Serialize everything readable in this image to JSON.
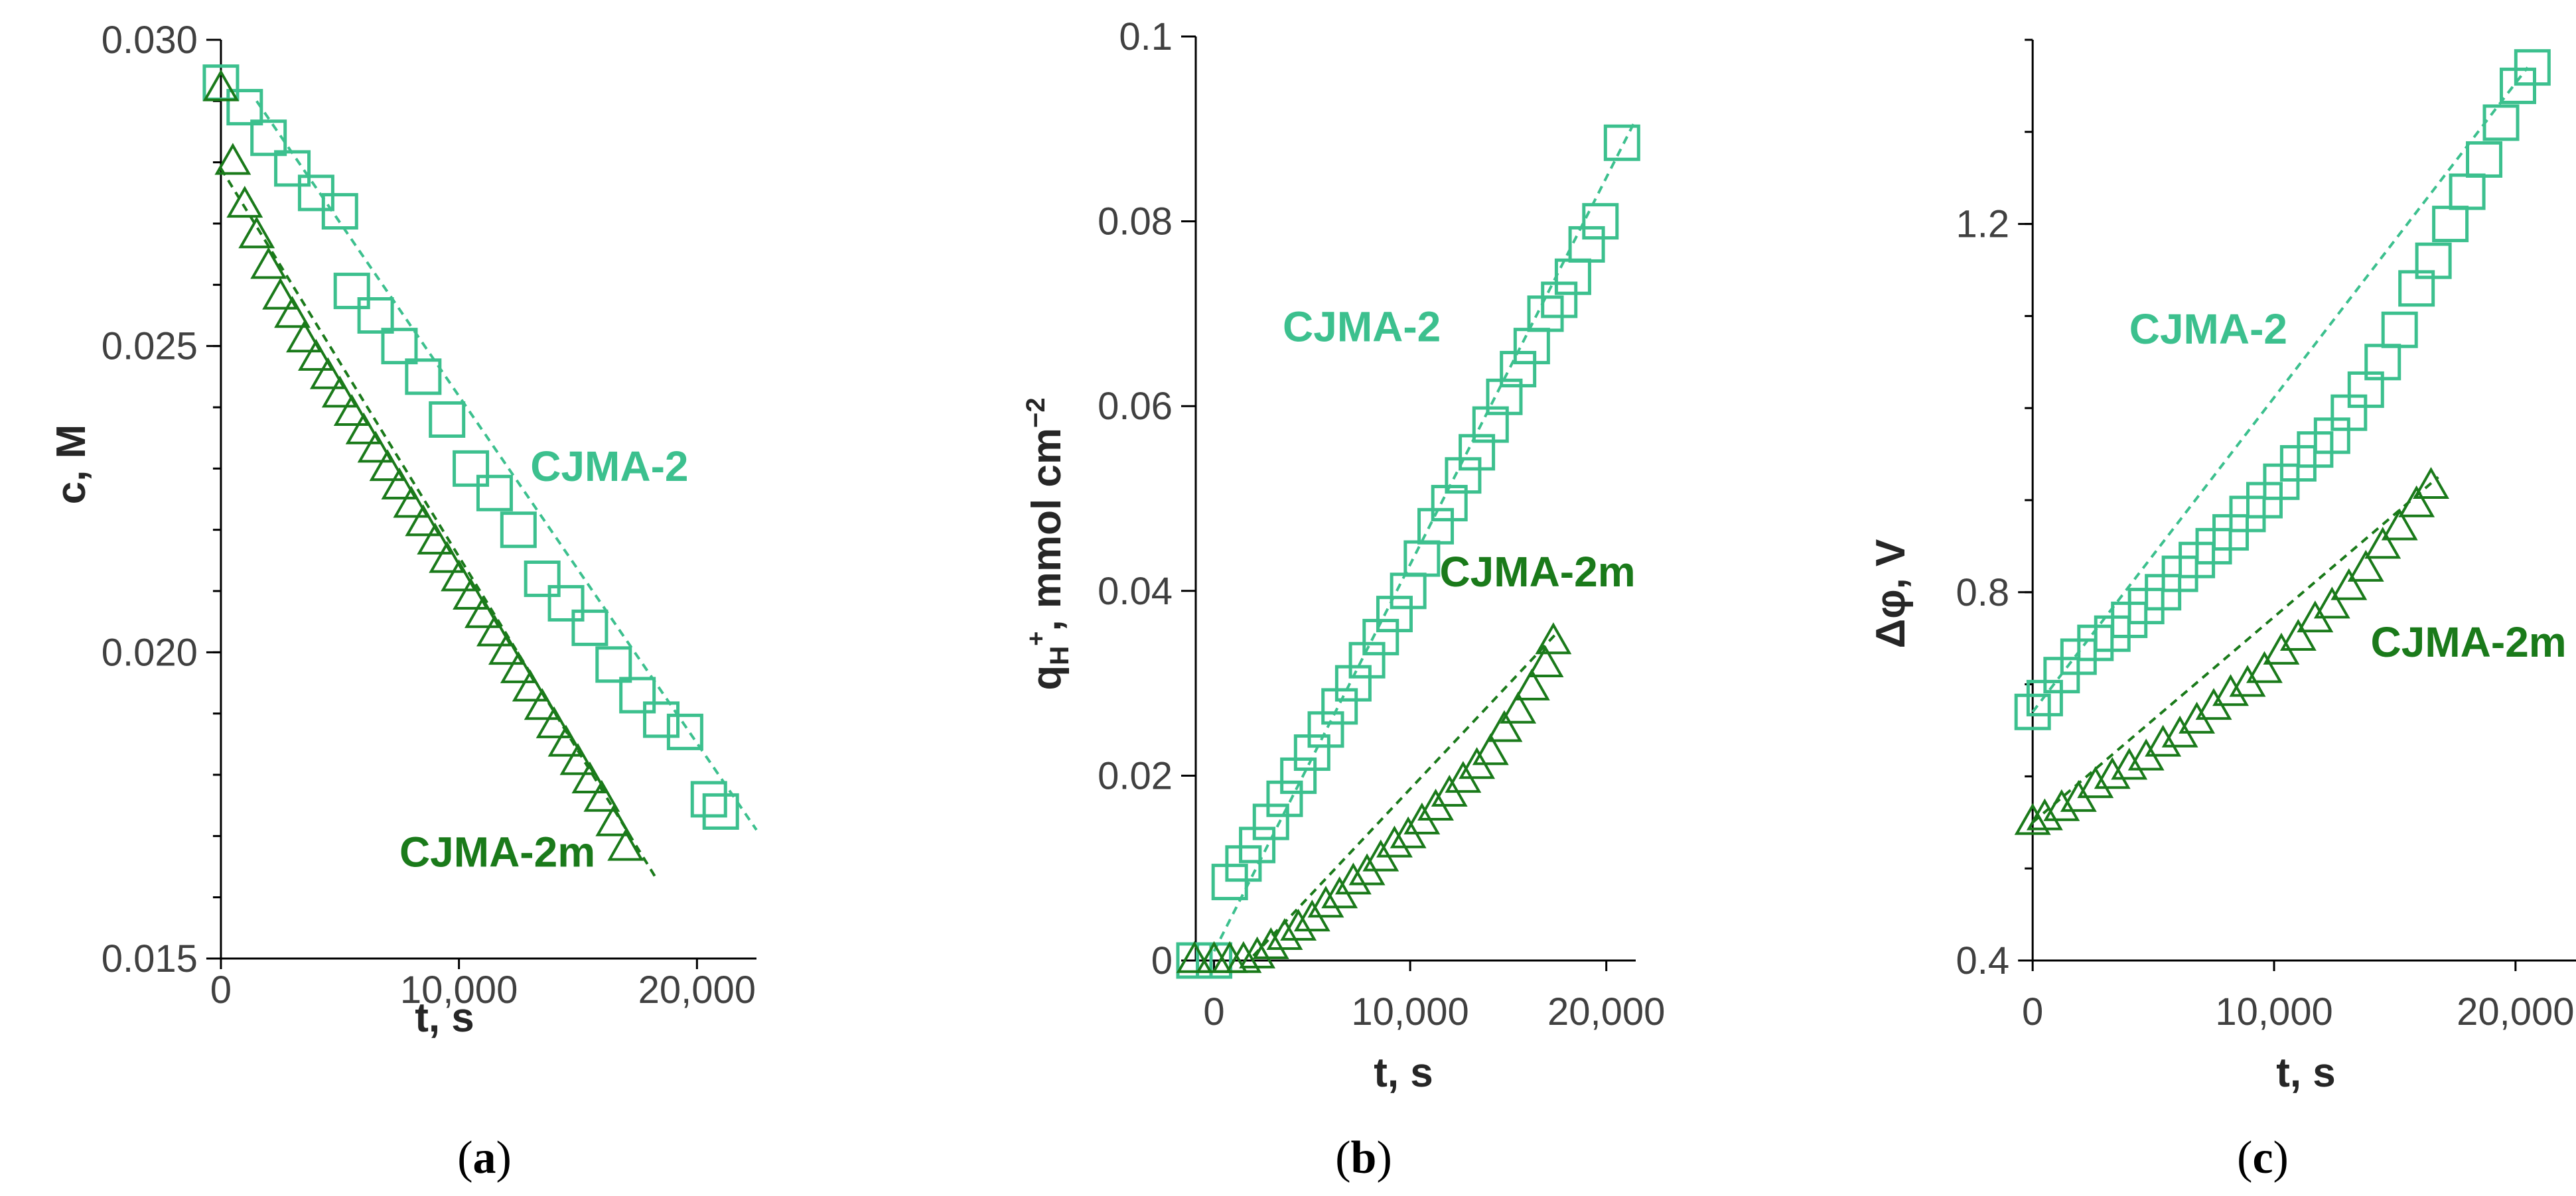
{
  "colors": {
    "cjma2": "#3cc08e",
    "cjma2m": "#1a7a1a",
    "axis": "#000000"
  },
  "chart_data": [
    {
      "type": "scatter",
      "panel": "a",
      "xlabel": "t, s",
      "ylabel": "c, M",
      "xlim": [
        -500,
        22500
      ],
      "ylim": [
        0.015,
        0.03
      ],
      "x_ticks": [
        0,
        10000,
        20000
      ],
      "x_tick_labels": [
        "0",
        "10,000",
        "20,000"
      ],
      "y_ticks": [
        0.015,
        0.02,
        0.025,
        0.03
      ],
      "y_tick_labels": [
        "0.015",
        "0.020",
        "0.025",
        "0.030"
      ],
      "y_minor_step": 0.001,
      "series": [
        {
          "name": "CJMA-2",
          "marker": "square",
          "x": [
            0,
            1000,
            2000,
            3000,
            4000,
            5000,
            5500,
            6500,
            7500,
            8500,
            9500,
            10500,
            11500,
            12500,
            13500,
            14500,
            15500,
            16500,
            17500,
            18500,
            19500,
            20500,
            21000
          ],
          "y": [
            0.0293,
            0.0289,
            0.0284,
            0.0279,
            0.0275,
            0.0272,
            0.0259,
            0.0255,
            0.025,
            0.0245,
            0.0238,
            0.023,
            0.0226,
            0.022,
            0.0212,
            0.0208,
            0.0204,
            0.0198,
            0.0193,
            0.0189,
            0.0187,
            0.0176,
            0.0174
          ],
          "fit": {
            "x": [
              1500,
              22500
            ],
            "y": [
              0.029,
              0.0171
            ]
          }
        },
        {
          "name": "CJMA-2m",
          "marker": "triangle",
          "x": [
            0,
            500,
            1000,
            1500,
            2000,
            2500,
            3000,
            3500,
            4000,
            4500,
            5000,
            5500,
            6000,
            6500,
            7000,
            7500,
            8000,
            8500,
            9000,
            9500,
            10000,
            10500,
            11000,
            11500,
            12000,
            12500,
            13000,
            13500,
            14000,
            14500,
            15000,
            15500,
            16000,
            16500,
            17000
          ],
          "y": [
            0.0292,
            0.028,
            0.0273,
            0.0268,
            0.0263,
            0.0258,
            0.0255,
            0.0251,
            0.0248,
            0.0245,
            0.0242,
            0.0239,
            0.0236,
            0.0233,
            0.023,
            0.0227,
            0.0224,
            0.0221,
            0.0218,
            0.0215,
            0.0212,
            0.0209,
            0.0206,
            0.0203,
            0.02,
            0.0197,
            0.0194,
            0.0191,
            0.0188,
            0.0185,
            0.0182,
            0.0179,
            0.0176,
            0.0172,
            0.0168
          ],
          "fit": {
            "x": [
              0,
              18300
            ],
            "y": [
              0.0279,
              0.0163
            ]
          }
        }
      ],
      "annotations": [
        {
          "text": "CJMA-2",
          "series": "CJMA-2",
          "x": 13000,
          "y": 0.0228
        },
        {
          "text": "CJMA-2m",
          "series": "CJMA-2m",
          "x": 7500,
          "y": 0.0165
        }
      ],
      "caption": {
        "open": "(",
        "letter": "a",
        "close": ")"
      }
    },
    {
      "type": "scatter",
      "panel": "b",
      "xlabel": "t, s",
      "ylabel": {
        "main": "q",
        "sub": "H",
        "sup": "+",
        "rest": ", mmol cm",
        "exp": "−2"
      },
      "xlim": [
        -1000,
        21500
      ],
      "ylim": [
        0,
        0.1
      ],
      "x_ticks": [
        0,
        10000,
        20000
      ],
      "x_tick_labels": [
        "0",
        "10,000",
        "20,000"
      ],
      "y_ticks": [
        0,
        0.02,
        0.04,
        0.06,
        0.08,
        0.1
      ],
      "y_tick_labels": [
        "0",
        "0.02",
        "0.04",
        "0.06",
        "0.08",
        "0.1"
      ],
      "series": [
        {
          "name": "CJMA-2",
          "marker": "square",
          "x": [
            -1000,
            0,
            800,
            1500,
            2200,
            2900,
            3600,
            4300,
            5000,
            5700,
            6400,
            7100,
            7800,
            8500,
            9200,
            9900,
            10600,
            11300,
            12000,
            12700,
            13400,
            14100,
            14800,
            15500,
            16200,
            16900,
            17600,
            18300,
            19000,
            19700,
            20800
          ],
          "y": [
            0,
            0,
            0.0085,
            0.0105,
            0.0125,
            0.015,
            0.0175,
            0.02,
            0.0225,
            0.025,
            0.0275,
            0.03,
            0.0325,
            0.035,
            0.0375,
            0.04,
            0.0435,
            0.047,
            0.0495,
            0.0525,
            0.055,
            0.058,
            0.061,
            0.064,
            0.0665,
            0.07,
            0.0715,
            0.074,
            0.0775,
            0.08,
            0.0885
          ],
          "fit": {
            "x": [
              0,
              21500
            ],
            "y": [
              0.001,
              0.091
            ]
          }
        },
        {
          "name": "CJMA-2m",
          "marker": "triangle",
          "x": [
            -1000,
            0,
            800,
            1500,
            2200,
            2900,
            3600,
            4300,
            5000,
            5700,
            6400,
            7100,
            7800,
            8500,
            9200,
            9900,
            10600,
            11300,
            12000,
            12700,
            13400,
            14100,
            14800,
            15500,
            16200,
            16900,
            17300
          ],
          "y": [
            0,
            0,
            0,
            0,
            0.0005,
            0.0015,
            0.0025,
            0.0035,
            0.0045,
            0.006,
            0.007,
            0.0085,
            0.0095,
            0.011,
            0.0125,
            0.0135,
            0.015,
            0.0165,
            0.018,
            0.0195,
            0.021,
            0.0225,
            0.025,
            0.027,
            0.0295,
            0.032,
            0.0345
          ],
          "fit": {
            "x": [
              2000,
              17500
            ],
            "y": [
              0.0005,
              0.0355
            ]
          }
        }
      ],
      "annotations": [
        {
          "text": "CJMA-2",
          "series": "CJMA-2",
          "x": 3500,
          "y": 0.067
        },
        {
          "text": "CJMA-2m",
          "series": "CJMA-2m",
          "x": 11500,
          "y": 0.0405
        }
      ],
      "caption": {
        "open": "(",
        "letter": "b",
        "close": ")"
      }
    },
    {
      "type": "scatter",
      "panel": "c",
      "xlabel": "t, s",
      "ylabel": "Δφ, V",
      "xlim": [
        -500,
        23000
      ],
      "ylim": [
        0.4,
        1.4
      ],
      "x_ticks": [
        0,
        10000,
        20000
      ],
      "x_tick_labels": [
        "0",
        "10,000",
        "20,000"
      ],
      "y_ticks": [
        0.4,
        0.8,
        1.2
      ],
      "y_tick_labels": [
        "0.4",
        "0.8",
        "1.2"
      ],
      "y_minor_step": 0.1,
      "series": [
        {
          "name": "CJMA-2",
          "marker": "square",
          "x": [
            0,
            500,
            1200,
            1900,
            2600,
            3300,
            4000,
            4700,
            5400,
            6100,
            6800,
            7500,
            8200,
            8900,
            9600,
            10300,
            11000,
            11700,
            12400,
            13100,
            13800,
            14500,
            15200,
            15900,
            16600,
            17300,
            18000,
            18700,
            19400,
            20100,
            20700
          ],
          "y": [
            0.67,
            0.685,
            0.71,
            0.73,
            0.745,
            0.755,
            0.77,
            0.785,
            0.8,
            0.82,
            0.835,
            0.85,
            0.865,
            0.885,
            0.9,
            0.92,
            0.94,
            0.955,
            0.97,
            0.995,
            1.02,
            1.05,
            1.085,
            1.13,
            1.16,
            1.2,
            1.235,
            1.27,
            1.31,
            1.35,
            1.37
          ],
          "fit": {
            "x": [
              0,
              20500
            ],
            "y": [
              0.67,
              1.37
            ]
          }
        },
        {
          "name": "CJMA-2m",
          "marker": "triangle",
          "x": [
            0,
            500,
            1200,
            1900,
            2600,
            3300,
            4000,
            4700,
            5400,
            6100,
            6800,
            7500,
            8200,
            8900,
            9600,
            10300,
            11000,
            11700,
            12400,
            13100,
            13800,
            14500,
            15200,
            15900,
            16500
          ],
          "y": [
            0.55,
            0.555,
            0.565,
            0.575,
            0.59,
            0.6,
            0.61,
            0.62,
            0.635,
            0.645,
            0.66,
            0.675,
            0.69,
            0.7,
            0.715,
            0.735,
            0.75,
            0.77,
            0.785,
            0.805,
            0.825,
            0.85,
            0.87,
            0.895,
            0.915
          ],
          "fit": {
            "x": [
              0,
              16800
            ],
            "y": [
              0.55,
              0.925
            ]
          }
        }
      ],
      "annotations": [
        {
          "text": "CJMA-2",
          "series": "CJMA-2",
          "x": 4000,
          "y": 1.07
        },
        {
          "text": "CJMA-2m",
          "series": "CJMA-2m",
          "x": 14000,
          "y": 0.73
        }
      ],
      "caption": {
        "open": "(",
        "letter": "c",
        "close": ")"
      }
    }
  ]
}
